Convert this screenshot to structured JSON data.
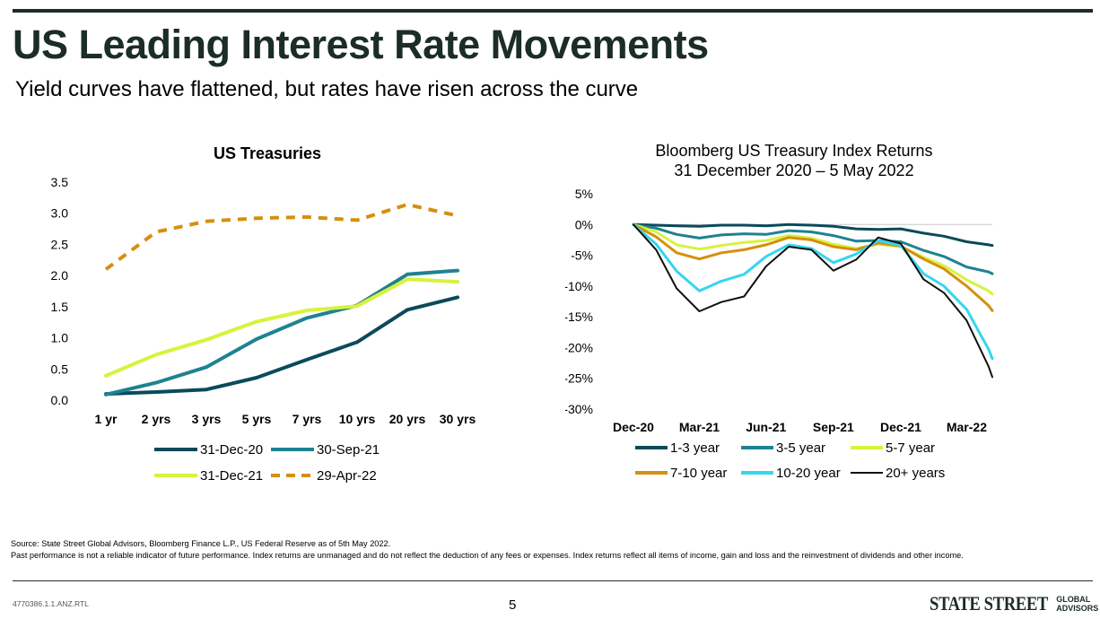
{
  "header": {
    "title": "US Leading Interest Rate Movements",
    "subtitle": "Yield curves have flattened, but rates have risen across the curve"
  },
  "chart_data": [
    {
      "type": "line",
      "title": "US Treasuries",
      "categories": [
        "1 yr",
        "2 yrs",
        "3 yrs",
        "5 yrs",
        "7 yrs",
        "10 yrs",
        "20 yrs",
        "30 yrs"
      ],
      "ylim": [
        0,
        3.5
      ],
      "yticks": [
        "0.0",
        "0.5",
        "1.0",
        "1.5",
        "2.0",
        "2.5",
        "3.0",
        "3.5"
      ],
      "grid": false,
      "legend_position": "bottom",
      "series": [
        {
          "name": "31-Dec-20",
          "color": "#0b4a5a",
          "dash": false,
          "values": [
            0.1,
            0.13,
            0.17,
            0.36,
            0.65,
            0.93,
            1.45,
            1.65
          ]
        },
        {
          "name": "30-Sep-21",
          "color": "#1f8290",
          "dash": false,
          "values": [
            0.09,
            0.28,
            0.53,
            0.98,
            1.32,
            1.52,
            2.02,
            2.08
          ]
        },
        {
          "name": "31-Dec-21",
          "color": "#d9f23c",
          "dash": false,
          "values": [
            0.39,
            0.73,
            0.97,
            1.26,
            1.44,
            1.51,
            1.94,
            1.9
          ]
        },
        {
          "name": "29-Apr-22",
          "color": "#d4900e",
          "dash": true,
          "values": [
            2.1,
            2.7,
            2.87,
            2.92,
            2.94,
            2.89,
            3.14,
            2.96
          ]
        }
      ]
    },
    {
      "type": "line",
      "title": "Bloomberg US Treasury Index Returns",
      "subtitle": "31 December 2020 – 5 May 2022",
      "x_labels": [
        "Dec-20",
        "Mar-21",
        "Jun-21",
        "Sep-21",
        "Dec-21",
        "Mar-22"
      ],
      "ylim": [
        -30,
        5
      ],
      "yticks": [
        "5%",
        "0%",
        "-5%",
        "-10%",
        "-15%",
        "-20%",
        "-25%",
        "-30%"
      ],
      "grid": false,
      "legend_position": "bottom",
      "x": [
        "2020-12-31",
        "2021-01-31",
        "2021-02-28",
        "2021-03-31",
        "2021-04-30",
        "2021-05-31",
        "2021-06-30",
        "2021-07-31",
        "2021-08-31",
        "2021-09-30",
        "2021-10-31",
        "2021-11-30",
        "2021-12-31",
        "2022-01-31",
        "2022-02-28",
        "2022-03-31",
        "2022-04-30",
        "2022-05-05"
      ],
      "series": [
        {
          "name": "1-3 year",
          "color": "#0b4a5a",
          "values": [
            0,
            -0.1,
            -0.2,
            -0.3,
            -0.1,
            -0.1,
            -0.2,
            0,
            -0.1,
            -0.3,
            -0.7,
            -0.8,
            -0.7,
            -1.4,
            -1.9,
            -2.8,
            -3.3,
            -3.4
          ]
        },
        {
          "name": "3-5 year",
          "color": "#1f8290",
          "values": [
            0,
            -0.6,
            -1.6,
            -2.2,
            -1.7,
            -1.5,
            -1.6,
            -1.0,
            -1.2,
            -1.8,
            -2.7,
            -2.6,
            -2.8,
            -4.2,
            -5.2,
            -6.9,
            -7.7,
            -8.0
          ]
        },
        {
          "name": "5-7 year",
          "color": "#d9f23c",
          "values": [
            0,
            -1.2,
            -3.3,
            -4.0,
            -3.4,
            -2.9,
            -2.6,
            -1.8,
            -2.2,
            -3.2,
            -3.9,
            -3.2,
            -3.6,
            -5.3,
            -6.7,
            -9.0,
            -10.8,
            -11.3
          ]
        },
        {
          "name": "7-10 year",
          "color": "#d4900e",
          "values": [
            0,
            -2.0,
            -4.6,
            -5.6,
            -4.6,
            -4.1,
            -3.3,
            -2.1,
            -2.5,
            -3.6,
            -4.1,
            -3.0,
            -3.5,
            -5.6,
            -7.2,
            -10.0,
            -13.2,
            -14.0
          ]
        },
        {
          "name": "10-20 year",
          "color": "#35d6ef",
          "values": [
            0,
            -3.2,
            -7.6,
            -10.8,
            -9.2,
            -8.1,
            -5.2,
            -3.3,
            -3.9,
            -6.2,
            -4.8,
            -2.6,
            -3.4,
            -8.0,
            -10.0,
            -13.8,
            -20.3,
            -21.8
          ]
        },
        {
          "name": "20+ years",
          "color": "#111111",
          "values": [
            0,
            -4.1,
            -10.4,
            -14.1,
            -12.6,
            -11.7,
            -6.8,
            -3.6,
            -4.1,
            -7.5,
            -5.7,
            -2.1,
            -3.1,
            -8.9,
            -11.1,
            -15.6,
            -23.1,
            -24.8
          ]
        }
      ]
    }
  ],
  "footer": {
    "source_line": "Source: State Street Global Advisors, Bloomberg Finance L.P., US Federal Reserve as of 5th May 2022.",
    "disclaimer": "Past performance is not a reliable indicator of future performance.  Index returns are unmanaged and do not reflect the deduction of any fees or expenses.  Index returns reflect all items of income, gain and loss and the reinvestment of dividends and other income.",
    "reference": "4770386.1.1.ANZ.RTL",
    "page_number": "5",
    "logo_main": "STATE STREET",
    "logo_sub_1": "GLOBAL",
    "logo_sub_2": "ADVISORS"
  }
}
